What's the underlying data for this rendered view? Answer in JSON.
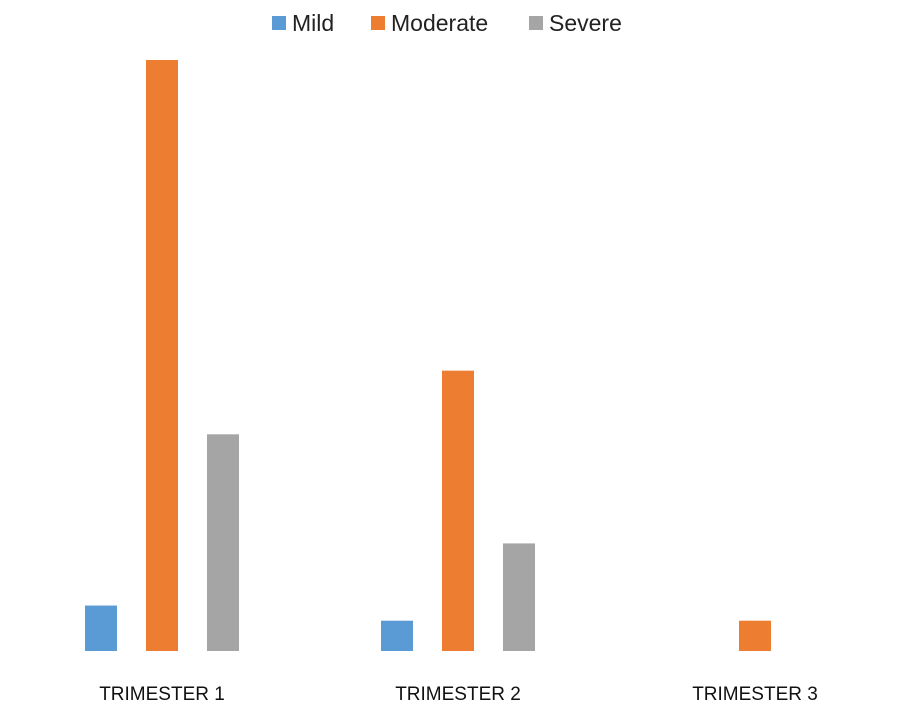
{
  "chart_data": {
    "type": "bar",
    "title": "",
    "xlabel": "",
    "ylabel": "",
    "categories": [
      "TRIMESTER 1",
      "TRIMESTER 2",
      "TRIMESTER 3"
    ],
    "series": [
      {
        "name": "Mild",
        "color": "#5b9bd5",
        "values": [
          3,
          2,
          0
        ]
      },
      {
        "name": "Moderate",
        "color": "#ed7d31",
        "values": [
          39,
          18.5,
          2
        ]
      },
      {
        "name": "Severe",
        "color": "#a5a5a5",
        "values": [
          14.3,
          7.1,
          0
        ]
      }
    ],
    "ylim": [
      0,
      39
    ],
    "grid": false,
    "legend_position": "top-center"
  }
}
